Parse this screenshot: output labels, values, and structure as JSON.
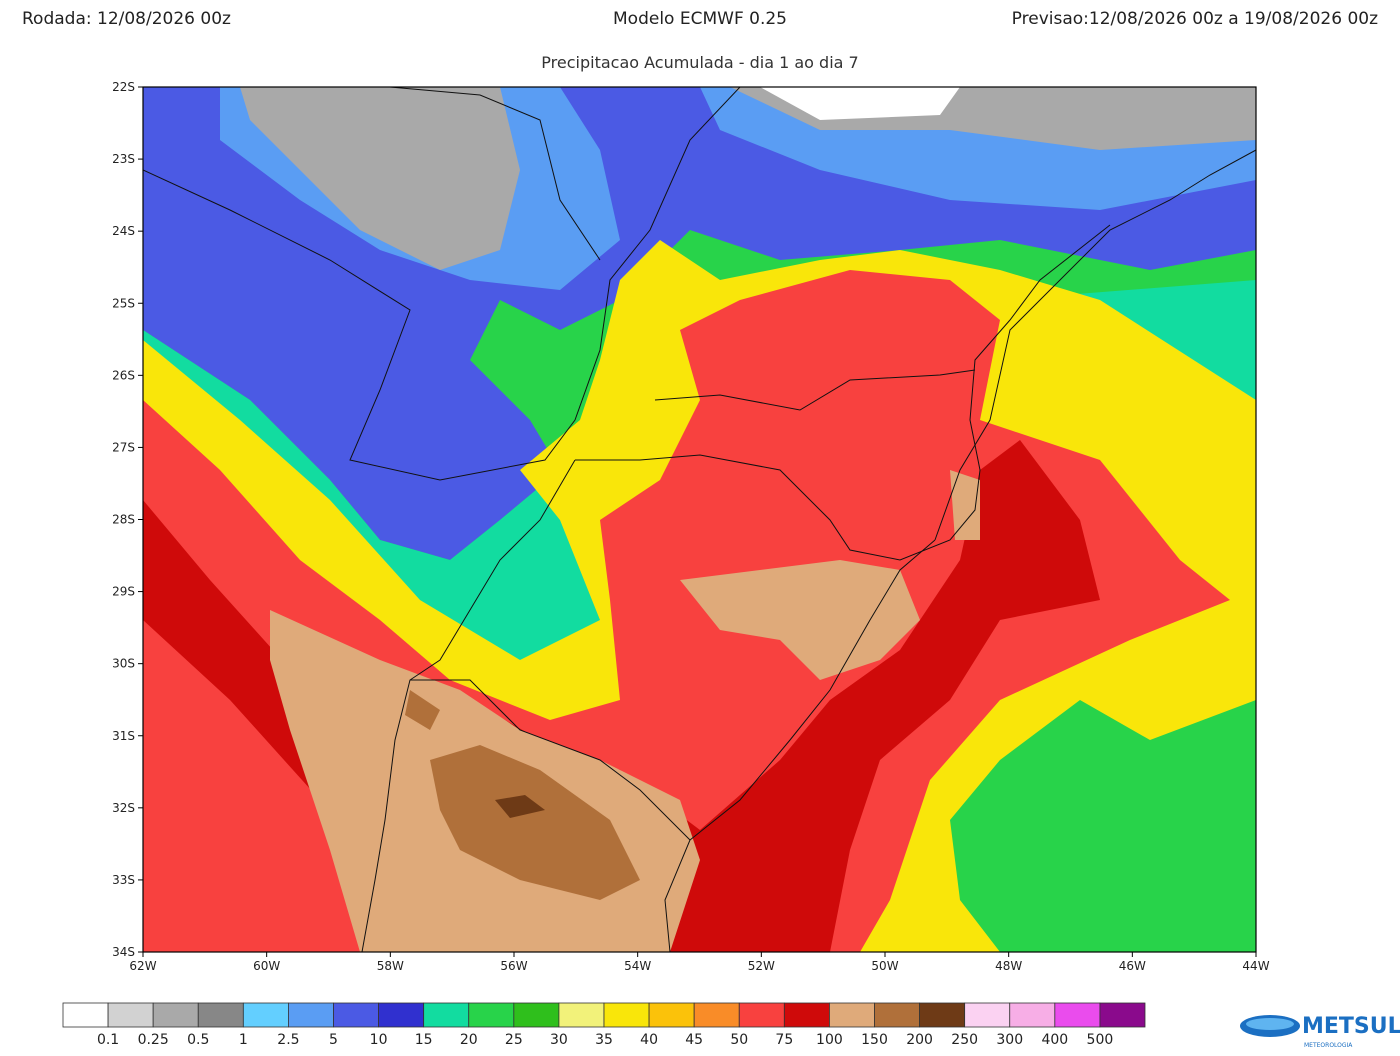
{
  "header": {
    "run": "Rodada: 12/08/2026 00z",
    "model": "Modelo ECMWF 0.25",
    "forecast": "Previsao:12/08/2026 00z a 19/08/2026 00z"
  },
  "subtitle": "Precipitacao Acumulada - dia 1 ao dia 7",
  "map": {
    "lat_labels": [
      "22S",
      "23S",
      "24S",
      "25S",
      "26S",
      "27S",
      "28S",
      "29S",
      "30S",
      "31S",
      "32S",
      "33S",
      "34S"
    ],
    "lon_labels": [
      "62W",
      "60W",
      "58W",
      "56W",
      "54W",
      "52W",
      "50W",
      "48W",
      "46W",
      "44W"
    ]
  },
  "colorbar": {
    "colors": [
      "#ffffff",
      "#d2d2d2",
      "#a9a9a9",
      "#878787",
      "#63cfff",
      "#5a9df3",
      "#4b5ae4",
      "#3030cf",
      "#12dca0",
      "#28d34a",
      "#2fbf1c",
      "#f2f27a",
      "#f9e60a",
      "#fbc20a",
      "#f98c28",
      "#f8413f",
      "#cf0a0a",
      "#dfaa7a",
      "#b0703a",
      "#6e3a16",
      "#fbd2f2",
      "#f7aee6",
      "#ea4ced",
      "#8a0a8c"
    ],
    "labels": [
      "0.1",
      "0.25",
      "0.5",
      "1",
      "2.5",
      "5",
      "10",
      "15",
      "20",
      "25",
      "30",
      "35",
      "40",
      "45",
      "50",
      "75",
      "100",
      "150",
      "200",
      "250",
      "300",
      "400",
      "500"
    ]
  },
  "logo": {
    "name": "METSUL",
    "tagline": "METEOROLOGIA"
  }
}
